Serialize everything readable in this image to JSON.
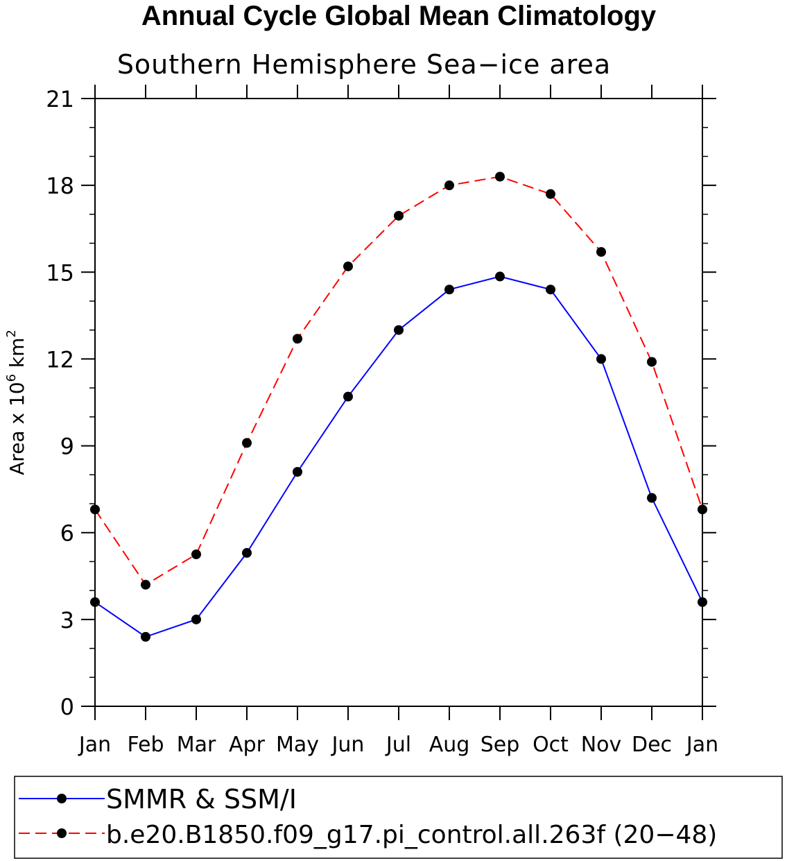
{
  "title": "Annual Cycle Global Mean Climatology",
  "chart_data": {
    "type": "line",
    "title": "Annual Cycle Global Mean Climatology",
    "subtitle": "Southern Hemisphere Sea−ice area",
    "ylabel_prefix": "Area x 10",
    "ylabel_exp1": "6",
    "ylabel_mid": " km",
    "ylabel_exp2": "2",
    "ylim": [
      0,
      21
    ],
    "yticks": [
      0,
      3,
      6,
      9,
      12,
      15,
      18,
      21
    ],
    "yticks_labels": [
      "0",
      "3",
      "6",
      "9",
      "12",
      "15",
      "18",
      "21"
    ],
    "categories": [
      "Jan",
      "Feb",
      "Mar",
      "Apr",
      "May",
      "Jun",
      "Jul",
      "Aug",
      "Sep",
      "Oct",
      "Nov",
      "Dec",
      "Jan"
    ],
    "series": [
      {
        "name": "SMMR & SSM/I",
        "color": "#0000ff",
        "style": "solid",
        "values": [
          3.6,
          2.4,
          3.0,
          5.3,
          8.1,
          10.7,
          13.0,
          14.4,
          14.85,
          14.4,
          12.0,
          7.2,
          3.6
        ]
      },
      {
        "name": "b.e20.B1850.f09_g17.pi_control.all.263f (20−48)",
        "color": "#ff0000",
        "style": "dashed",
        "values": [
          6.8,
          4.2,
          5.25,
          9.1,
          12.7,
          15.2,
          16.95,
          18.0,
          18.3,
          17.7,
          15.7,
          11.9,
          6.8
        ]
      }
    ],
    "legend_position": "bottom"
  }
}
